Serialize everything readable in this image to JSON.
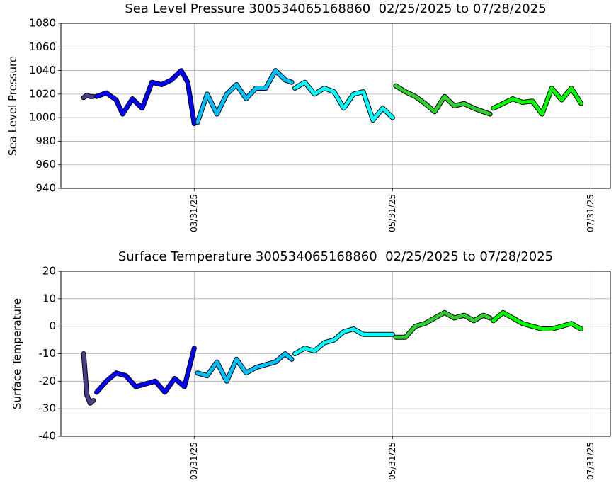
{
  "chart_data": [
    {
      "type": "line",
      "title": "Sea Level Pressure 300534065168860  02/25/2025 to 07/28/2025",
      "ylabel": "Sea Level Pressure",
      "xlim": [
        "2025-02-18",
        "2025-08-06"
      ],
      "xticks": [
        {
          "value": "2025-03-31",
          "label": "03/31/25"
        },
        {
          "value": "2025-05-31",
          "label": "05/31/25"
        },
        {
          "value": "2025-07-31",
          "label": "07/31/25"
        }
      ],
      "ylim": [
        940,
        1080
      ],
      "yticks": [
        940,
        960,
        980,
        1000,
        1020,
        1040,
        1060,
        1080
      ],
      "grid": true,
      "series": [
        {
          "color": "#483d8b",
          "x": [
            "2025-02-25",
            "2025-02-26",
            "2025-02-27",
            "2025-02-28"
          ],
          "values": [
            1017,
            1019,
            1018,
            1018
          ]
        },
        {
          "color": "#0000ff",
          "x": [
            "2025-03-01",
            "2025-03-04",
            "2025-03-07",
            "2025-03-09",
            "2025-03-12",
            "2025-03-15",
            "2025-03-18",
            "2025-03-21",
            "2025-03-24",
            "2025-03-27",
            "2025-03-29",
            "2025-03-31"
          ],
          "values": [
            1018,
            1021,
            1015,
            1003,
            1016,
            1008,
            1030,
            1028,
            1032,
            1040,
            1030,
            995
          ]
        },
        {
          "color": "#00bfff",
          "x": [
            "2025-04-01",
            "2025-04-04",
            "2025-04-07",
            "2025-04-10",
            "2025-04-13",
            "2025-04-16",
            "2025-04-19",
            "2025-04-22",
            "2025-04-25",
            "2025-04-28",
            "2025-04-30"
          ],
          "values": [
            996,
            1020,
            1003,
            1020,
            1028,
            1016,
            1025,
            1025,
            1040,
            1032,
            1030
          ]
        },
        {
          "color": "#00ffff",
          "x": [
            "2025-05-01",
            "2025-05-04",
            "2025-05-07",
            "2025-05-10",
            "2025-05-13",
            "2025-05-16",
            "2025-05-19",
            "2025-05-22",
            "2025-05-25",
            "2025-05-28",
            "2025-05-31"
          ],
          "values": [
            1025,
            1030,
            1020,
            1025,
            1022,
            1008,
            1020,
            1022,
            998,
            1008,
            1000
          ]
        },
        {
          "color": "#32cd32",
          "x": [
            "2025-06-01",
            "2025-06-04",
            "2025-06-07",
            "2025-06-10",
            "2025-06-13",
            "2025-06-16",
            "2025-06-19",
            "2025-06-22",
            "2025-06-25",
            "2025-06-28",
            "2025-06-30"
          ],
          "values": [
            1027,
            1022,
            1018,
            1012,
            1005,
            1018,
            1010,
            1012,
            1008,
            1005,
            1003
          ]
        },
        {
          "color": "#00ff00",
          "x": [
            "2025-07-01",
            "2025-07-04",
            "2025-07-07",
            "2025-07-10",
            "2025-07-13",
            "2025-07-16",
            "2025-07-19",
            "2025-07-22",
            "2025-07-25",
            "2025-07-28"
          ],
          "values": [
            1008,
            1012,
            1016,
            1013,
            1014,
            1003,
            1025,
            1015,
            1025,
            1012
          ]
        }
      ]
    },
    {
      "type": "line",
      "title": "Surface Temperature 300534065168860  02/25/2025 to 07/28/2025",
      "ylabel": "Surface Temperature",
      "xlim": [
        "2025-02-18",
        "2025-08-06"
      ],
      "xticks": [
        {
          "value": "2025-03-31",
          "label": "03/31/25"
        },
        {
          "value": "2025-05-31",
          "label": "05/31/25"
        },
        {
          "value": "2025-07-31",
          "label": "07/31/25"
        }
      ],
      "ylim": [
        -40,
        20
      ],
      "yticks": [
        -40,
        -30,
        -20,
        -10,
        0,
        10,
        20
      ],
      "grid": true,
      "series": [
        {
          "color": "#483d8b",
          "x": [
            "2025-02-25",
            "2025-02-26",
            "2025-02-27",
            "2025-02-28"
          ],
          "values": [
            -10,
            -25,
            -28,
            -27
          ]
        },
        {
          "color": "#0000ff",
          "x": [
            "2025-03-01",
            "2025-03-04",
            "2025-03-07",
            "2025-03-10",
            "2025-03-13",
            "2025-03-16",
            "2025-03-19",
            "2025-03-22",
            "2025-03-25",
            "2025-03-28",
            "2025-03-31"
          ],
          "values": [
            -24,
            -20,
            -17,
            -18,
            -22,
            -21,
            -20,
            -24,
            -19,
            -22,
            -8
          ]
        },
        {
          "color": "#00bfff",
          "x": [
            "2025-04-01",
            "2025-04-04",
            "2025-04-07",
            "2025-04-10",
            "2025-04-13",
            "2025-04-16",
            "2025-04-19",
            "2025-04-22",
            "2025-04-25",
            "2025-04-28",
            "2025-04-30"
          ],
          "values": [
            -17,
            -18,
            -13,
            -20,
            -12,
            -17,
            -15,
            -14,
            -13,
            -10,
            -12
          ]
        },
        {
          "color": "#00ffff",
          "x": [
            "2025-05-01",
            "2025-05-04",
            "2025-05-07",
            "2025-05-10",
            "2025-05-13",
            "2025-05-16",
            "2025-05-19",
            "2025-05-22",
            "2025-05-25",
            "2025-05-28",
            "2025-05-31"
          ],
          "values": [
            -10,
            -8,
            -9,
            -6,
            -5,
            -2,
            -1,
            -3,
            -3,
            -3,
            -3
          ]
        },
        {
          "color": "#32cd32",
          "x": [
            "2025-06-01",
            "2025-06-04",
            "2025-06-07",
            "2025-06-10",
            "2025-06-13",
            "2025-06-16",
            "2025-06-19",
            "2025-06-22",
            "2025-06-25",
            "2025-06-28",
            "2025-06-30"
          ],
          "values": [
            -4,
            -4,
            0,
            1,
            3,
            5,
            3,
            4,
            2,
            4,
            3
          ]
        },
        {
          "color": "#00ff00",
          "x": [
            "2025-07-01",
            "2025-07-04",
            "2025-07-07",
            "2025-07-10",
            "2025-07-13",
            "2025-07-16",
            "2025-07-19",
            "2025-07-22",
            "2025-07-25",
            "2025-07-28"
          ],
          "values": [
            2,
            5,
            3,
            1,
            0,
            -1,
            -1,
            0,
            1,
            -1
          ]
        }
      ]
    }
  ]
}
